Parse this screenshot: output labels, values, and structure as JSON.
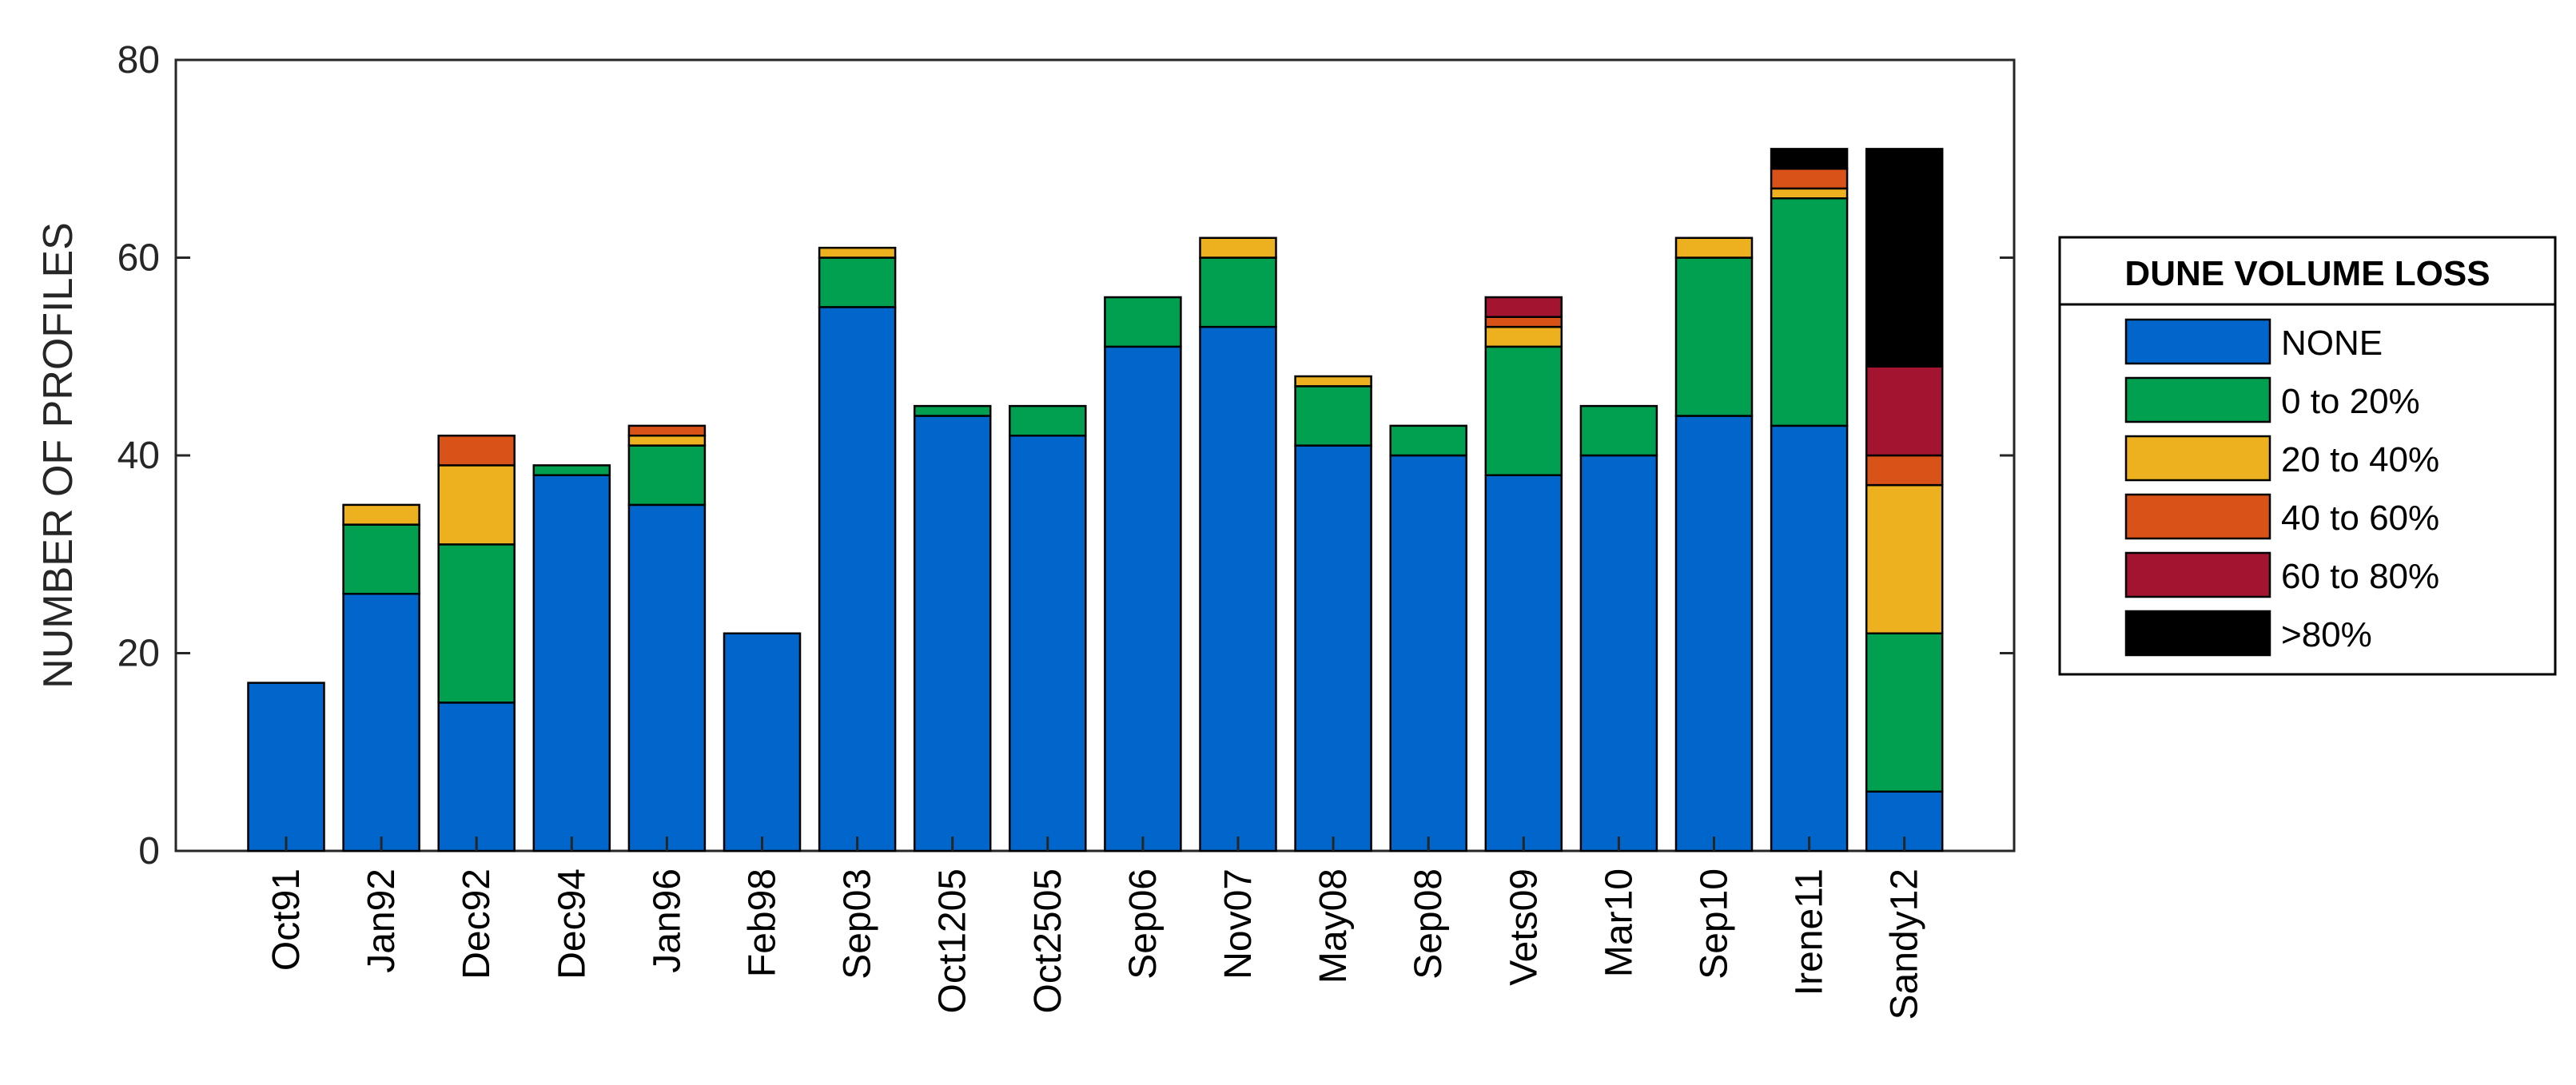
{
  "chart_data": {
    "type": "bar",
    "stacked": true,
    "categories": [
      "Oct91",
      "Jan92",
      "Dec92",
      "Dec94",
      "Jan96",
      "Feb98",
      "Sep03",
      "Oct1205",
      "Oct2505",
      "Sep06",
      "Nov07",
      "May08",
      "Sep08",
      "Vets09",
      "Mar10",
      "Sep10",
      "Irene11",
      "Sandy12"
    ],
    "series": [
      {
        "name": "NONE",
        "color": "#0066CC",
        "values": [
          17,
          26,
          15,
          38,
          35,
          22,
          55,
          44,
          42,
          51,
          53,
          41,
          40,
          38,
          40,
          44,
          43,
          6
        ]
      },
      {
        "name": "0 to 20%",
        "color": "#00A050",
        "values": [
          0,
          7,
          16,
          1,
          6,
          0,
          5,
          1,
          3,
          5,
          7,
          6,
          3,
          13,
          5,
          16,
          23,
          16
        ]
      },
      {
        "name": "20 to 40%",
        "color": "#EDB120",
        "values": [
          0,
          2,
          8,
          0,
          1,
          0,
          1,
          0,
          0,
          0,
          2,
          1,
          0,
          2,
          0,
          2,
          1,
          15
        ]
      },
      {
        "name": "40 to 60%",
        "color": "#D95319",
        "values": [
          0,
          0,
          3,
          0,
          1,
          0,
          0,
          0,
          0,
          0,
          0,
          0,
          0,
          1,
          0,
          0,
          2,
          3
        ]
      },
      {
        "name": "60 to 80%",
        "color": "#A2142F",
        "values": [
          0,
          0,
          0,
          0,
          0,
          0,
          0,
          0,
          0,
          0,
          0,
          0,
          0,
          2,
          0,
          0,
          0,
          9
        ]
      },
      {
        "name": ">80%",
        "color": "#000000",
        "values": [
          0,
          0,
          0,
          0,
          0,
          0,
          0,
          0,
          0,
          0,
          0,
          0,
          0,
          0,
          0,
          0,
          2,
          22
        ]
      }
    ],
    "ylabel": "NUMBER OF PROFILES",
    "xlabel": "",
    "ylim": [
      0,
      80
    ],
    "yticks": [
      0,
      20,
      40,
      60,
      80
    ],
    "grid": false,
    "legend_title": "DUNE VOLUME LOSS",
    "legend_position": "right"
  }
}
